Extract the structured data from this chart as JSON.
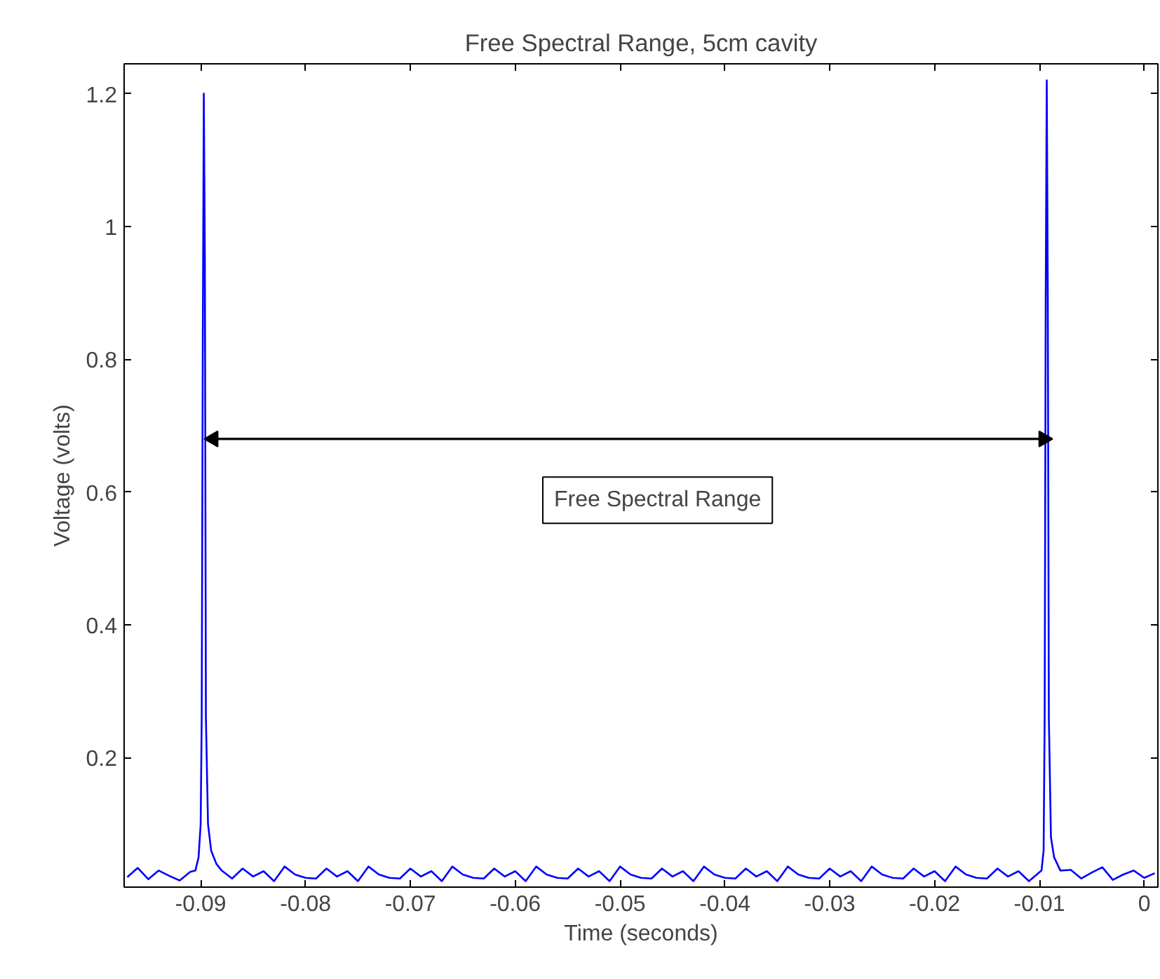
{
  "chart_data": {
    "type": "line",
    "title": "Free Spectral Range, 5cm cavity",
    "xlabel": "Time (seconds)",
    "ylabel": "Voltage (volts)",
    "annotations": [
      "Free Spectral Range"
    ],
    "x": [
      -0.097,
      -0.096,
      -0.095,
      -0.094,
      -0.093,
      -0.092,
      -0.091,
      -0.0905,
      -0.0902,
      -0.09,
      -0.0899,
      -0.0898,
      -0.0897,
      -0.0896,
      -0.0895,
      -0.0893,
      -0.089,
      -0.0885,
      -0.088,
      -0.087,
      -0.086,
      -0.085,
      -0.084,
      -0.083,
      -0.082,
      -0.081,
      -0.08,
      -0.079,
      -0.078,
      -0.077,
      -0.076,
      -0.075,
      -0.074,
      -0.073,
      -0.072,
      -0.071,
      -0.07,
      -0.069,
      -0.068,
      -0.067,
      -0.066,
      -0.065,
      -0.064,
      -0.063,
      -0.062,
      -0.061,
      -0.06,
      -0.059,
      -0.058,
      -0.057,
      -0.056,
      -0.055,
      -0.054,
      -0.053,
      -0.052,
      -0.051,
      -0.05,
      -0.049,
      -0.048,
      -0.047,
      -0.046,
      -0.045,
      -0.044,
      -0.043,
      -0.042,
      -0.041,
      -0.04,
      -0.039,
      -0.038,
      -0.037,
      -0.036,
      -0.035,
      -0.034,
      -0.033,
      -0.032,
      -0.031,
      -0.03,
      -0.029,
      -0.028,
      -0.027,
      -0.026,
      -0.025,
      -0.024,
      -0.023,
      -0.022,
      -0.021,
      -0.02,
      -0.019,
      -0.018,
      -0.017,
      -0.016,
      -0.015,
      -0.014,
      -0.013,
      -0.012,
      -0.011,
      -0.0098,
      -0.0096,
      -0.0095,
      -0.0094,
      -0.0093,
      -0.0092,
      -0.0091,
      -0.0089,
      -0.0086,
      -0.008,
      -0.007,
      -0.006,
      -0.005,
      -0.004,
      -0.003,
      -0.002,
      -0.001,
      0.0,
      0.001
    ],
    "series": [
      {
        "color": "#0000ff",
        "values": [
          0.02,
          0.034,
          0.017,
          0.03,
          0.022,
          0.015,
          0.028,
          0.03,
          0.05,
          0.1,
          0.26,
          0.82,
          1.2,
          0.95,
          0.26,
          0.1,
          0.06,
          0.04,
          0.03,
          0.018,
          0.033,
          0.021,
          0.029,
          0.014,
          0.036,
          0.024,
          0.019,
          0.018,
          0.033,
          0.021,
          0.029,
          0.014,
          0.036,
          0.024,
          0.019,
          0.018,
          0.033,
          0.021,
          0.029,
          0.014,
          0.036,
          0.024,
          0.019,
          0.018,
          0.033,
          0.021,
          0.029,
          0.014,
          0.036,
          0.024,
          0.019,
          0.018,
          0.033,
          0.021,
          0.029,
          0.014,
          0.036,
          0.024,
          0.019,
          0.018,
          0.033,
          0.021,
          0.029,
          0.014,
          0.036,
          0.024,
          0.019,
          0.018,
          0.033,
          0.021,
          0.029,
          0.014,
          0.036,
          0.024,
          0.019,
          0.018,
          0.033,
          0.021,
          0.029,
          0.014,
          0.036,
          0.024,
          0.019,
          0.018,
          0.033,
          0.021,
          0.029,
          0.014,
          0.036,
          0.024,
          0.019,
          0.018,
          0.033,
          0.021,
          0.029,
          0.014,
          0.03,
          0.06,
          0.26,
          0.89,
          1.22,
          0.89,
          0.26,
          0.08,
          0.05,
          0.03,
          0.031,
          0.018,
          0.027,
          0.035,
          0.016,
          0.024,
          0.03,
          0.019,
          0.026
        ]
      },
      {
        "type": "line",
        "color": "#000000",
        "marker": "triangle",
        "x": [
          -0.0888,
          -0.0096
        ],
        "values": [
          0.68,
          0.68
        ]
      }
    ],
    "xlim": [
      -0.0973,
      0.0013
    ],
    "ylim": [
      0.005,
      1.245
    ],
    "xticks": [
      -0.09,
      -0.08,
      -0.07,
      -0.06,
      -0.05,
      -0.04,
      -0.03,
      -0.02,
      -0.01,
      0
    ],
    "yticks": [
      0.2,
      0.4,
      0.6,
      0.8,
      {
        "value": 1,
        "label": "1"
      },
      1.2
    ],
    "grid": false,
    "marker": "none",
    "line_style": "solid"
  }
}
